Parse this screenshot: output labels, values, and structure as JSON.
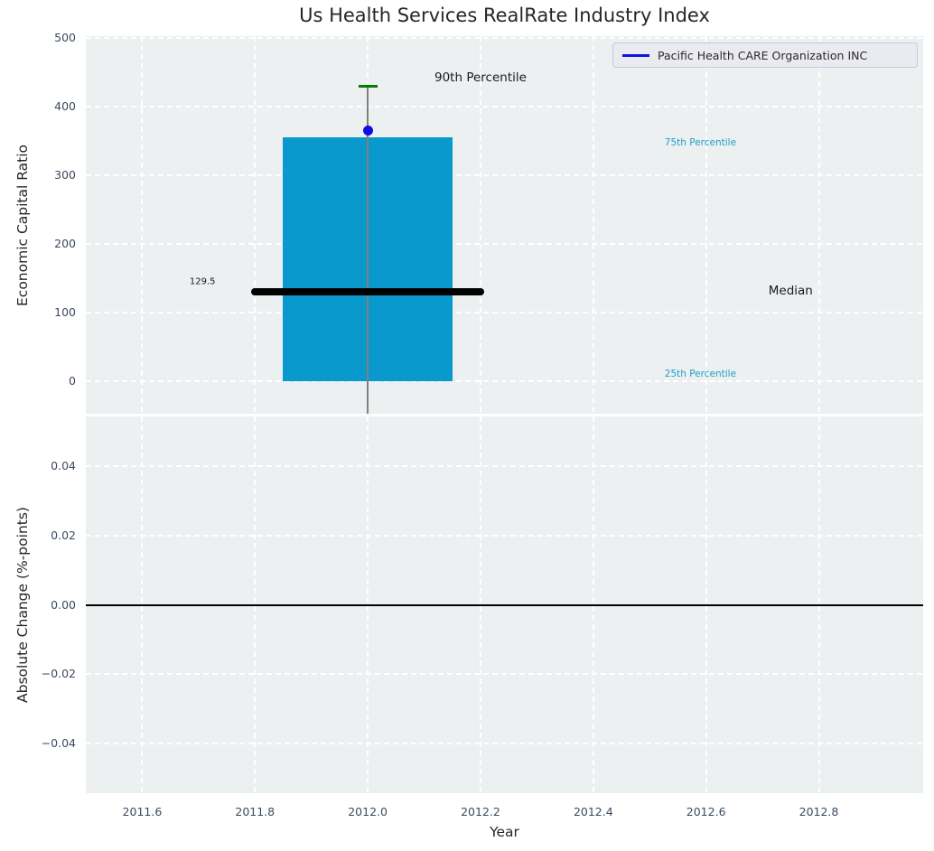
{
  "chart_data": [
    {
      "type": "bar",
      "title": "Us Health Services RealRate Industry Index",
      "ylabel": "Economic Capital Ratio",
      "xlim": [
        2011.5,
        2012.985
      ],
      "ylim": [
        -47.5,
        502.5
      ],
      "yticks": [
        0,
        100,
        200,
        300,
        400,
        500
      ],
      "ytick_labels": [
        "0",
        "100",
        "200",
        "300",
        "400",
        "500"
      ],
      "grid": true,
      "background_color": "#ecf0f1",
      "legend": {
        "position": "upper right",
        "entries": [
          {
            "label": "Pacific Health CARE Organization INC",
            "line_color": "#1212e0"
          }
        ]
      },
      "industry_box": {
        "year": 2012.0,
        "bar_bottom": 0,
        "bar_top_75th_percentile": 355,
        "bar_width_years": 0.3,
        "bar_color": "#0999cc",
        "median_value": 129.5,
        "median_span_years": 0.4,
        "median_color": "#000000",
        "percentile_90_value": 430,
        "percentile_90_marker_color": "#008000",
        "whisker_color": "#808080",
        "company_point_value": 365,
        "company_point_color": "#0e0ee0"
      },
      "annotations": [
        {
          "text": "90th Percentile",
          "x": 2012.2,
          "y": 442,
          "color": "#1a1a1a",
          "font_px": 13.5
        },
        {
          "text": "75th Percentile",
          "x": 2012.59,
          "y": 347,
          "color": "#1e9ec6",
          "font_px": 10.5
        },
        {
          "text": "Median",
          "x": 2012.75,
          "y": 131,
          "color": "#1a1a1a",
          "font_px": 13.5
        },
        {
          "text": "25th Percentile",
          "x": 2012.59,
          "y": 11,
          "color": "#1e9ec6",
          "font_px": 10.5
        },
        {
          "text": "129.5",
          "x": 2011.707,
          "y": 145,
          "color": "#1a1a1a",
          "font_px": 10
        }
      ]
    },
    {
      "type": "line",
      "xlabel": "Year",
      "ylabel": "Absolute Change (%-points)",
      "xlim": [
        2011.5,
        2012.985
      ],
      "ylim": [
        -0.0545,
        0.0545
      ],
      "xticks": [
        2011.6,
        2011.8,
        2012.0,
        2012.2,
        2012.4,
        2012.6,
        2012.8
      ],
      "xtick_labels": [
        "2011.6",
        "2011.8",
        "2012.0",
        "2012.2",
        "2012.4",
        "2012.6",
        "2012.8"
      ],
      "yticks": [
        -0.04,
        -0.02,
        0,
        0.02,
        0.04
      ],
      "ytick_labels": [
        "−0.04",
        "−0.02",
        "0.00",
        "0.02",
        "0.04"
      ],
      "zero_line": 0.0,
      "grid": true,
      "visible_series_points": []
    }
  ]
}
